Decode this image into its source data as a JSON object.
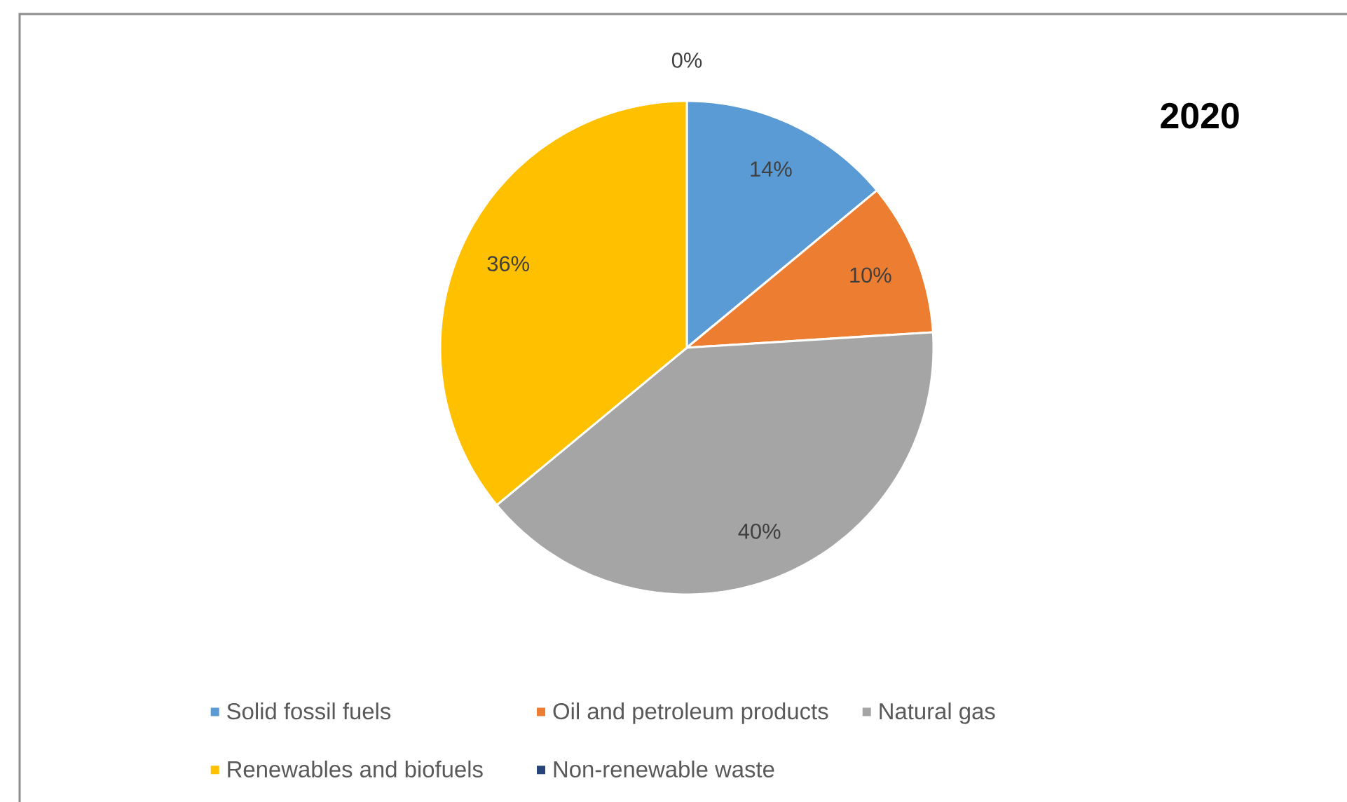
{
  "chart_data": {
    "type": "pie",
    "title": "2020",
    "categories": [
      "Solid fossil fuels",
      "Oil and petroleum products",
      "Natural gas",
      "Renewables and biofuels",
      "Non-renewable waste"
    ],
    "values": [
      14,
      10,
      40,
      36,
      0
    ],
    "value_labels": [
      "14%",
      "10%",
      "40%",
      "36%",
      "0%"
    ],
    "colors": [
      "#5b9bd5",
      "#ed7d31",
      "#a5a5a5",
      "#ffc000",
      "#264478"
    ],
    "legend": "bottom"
  }
}
